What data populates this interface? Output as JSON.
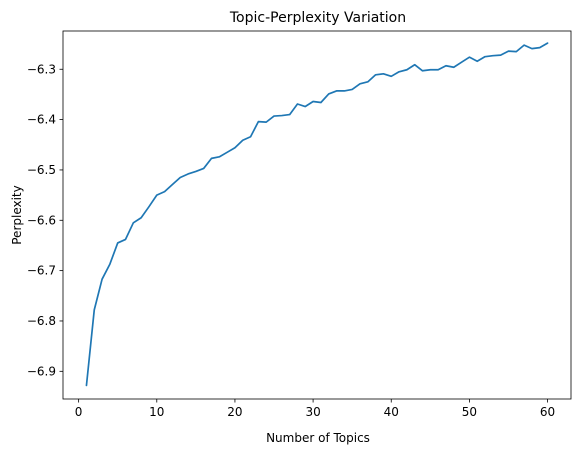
{
  "chart_data": {
    "type": "line",
    "title": "Topic-Perplexity Variation",
    "xlabel": "Number of Topics",
    "ylabel": "Perplexity",
    "xlim": [
      -2,
      63
    ],
    "ylim": [
      -6.955,
      -6.224
    ],
    "xticks": [
      0,
      10,
      20,
      30,
      40,
      50,
      60
    ],
    "yticks": [
      -6.9,
      -6.8,
      -6.7,
      -6.6,
      -6.5,
      -6.4,
      -6.3
    ],
    "grid": false,
    "series_color": "#1f77b4",
    "series": [
      {
        "x": [
          1,
          2,
          3,
          4,
          5,
          6,
          7,
          8,
          9,
          10,
          11,
          12,
          13,
          14,
          15,
          16,
          17,
          18,
          19,
          20,
          21,
          22,
          23,
          24,
          25,
          26,
          27,
          28,
          29,
          30,
          31,
          32,
          33,
          34,
          35,
          36,
          37,
          38,
          39,
          40,
          41,
          42,
          43,
          44,
          45,
          46,
          47,
          48,
          49,
          50,
          51,
          52,
          53,
          54,
          55,
          56,
          57,
          58,
          59,
          60
        ],
        "values": [
          -6.928,
          -6.778,
          -6.717,
          -6.687,
          -6.645,
          -6.638,
          -6.605,
          -6.595,
          -6.573,
          -6.55,
          -6.543,
          -6.529,
          -6.515,
          -6.508,
          -6.503,
          -6.497,
          -6.477,
          -6.474,
          -6.465,
          -6.456,
          -6.441,
          -6.434,
          -6.404,
          -6.405,
          -6.393,
          -6.392,
          -6.39,
          -6.369,
          -6.374,
          -6.364,
          -6.366,
          -6.349,
          -6.343,
          -6.343,
          -6.34,
          -6.329,
          -6.325,
          -6.311,
          -6.309,
          -6.314,
          -6.305,
          -6.301,
          -6.291,
          -6.303,
          -6.301,
          -6.301,
          -6.293,
          -6.296,
          -6.286,
          -6.276,
          -6.284,
          -6.275,
          -6.273,
          -6.272,
          -6.264,
          -6.265,
          -6.252,
          -6.259,
          -6.257,
          -6.248
        ]
      }
    ]
  }
}
